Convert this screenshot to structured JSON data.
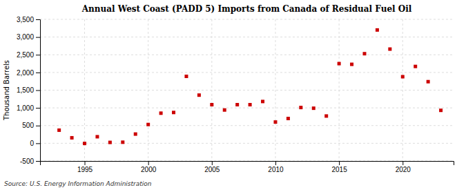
{
  "chart_data": {
    "type": "scatter",
    "title": "Annual West Coast (PADD 5) Imports from Canada of Residual Fuel Oil",
    "ylabel": "Thousand Barrels",
    "annotations": [
      "Source: U.S. Energy Information Administration"
    ],
    "x": [
      1993,
      1994,
      1995,
      1996,
      1997,
      1998,
      1999,
      2000,
      2001,
      2002,
      2003,
      2004,
      2005,
      2006,
      2007,
      2008,
      2009,
      2010,
      2011,
      2012,
      2013,
      2014,
      2015,
      2016,
      2017,
      2018,
      2019,
      2020,
      2021,
      2022,
      2023
    ],
    "values": [
      370,
      155,
      -5,
      185,
      25,
      30,
      260,
      530,
      850,
      870,
      1890,
      1360,
      1090,
      940,
      1090,
      1090,
      1180,
      600,
      700,
      1010,
      990,
      770,
      2250,
      2230,
      2530,
      3200,
      2660,
      1880,
      2170,
      1740,
      930
    ],
    "color": "#cc0000",
    "marker": "square",
    "grid": true,
    "xlim": [
      1991.5,
      2024
    ],
    "xticks": [
      1995,
      2000,
      2005,
      2010,
      2015,
      2020
    ],
    "ylim": [
      -500,
      3500
    ],
    "yticks": [
      -500,
      0,
      500,
      {
        "value": 1000,
        "label": "1,000"
      },
      {
        "value": 1500,
        "label": "1,500"
      },
      {
        "value": 2000,
        "label": "2,000"
      },
      {
        "value": 2500,
        "label": "2,500"
      },
      {
        "value": 3000,
        "label": "3,000"
      },
      {
        "value": 3500,
        "label": "3,500"
      }
    ]
  }
}
